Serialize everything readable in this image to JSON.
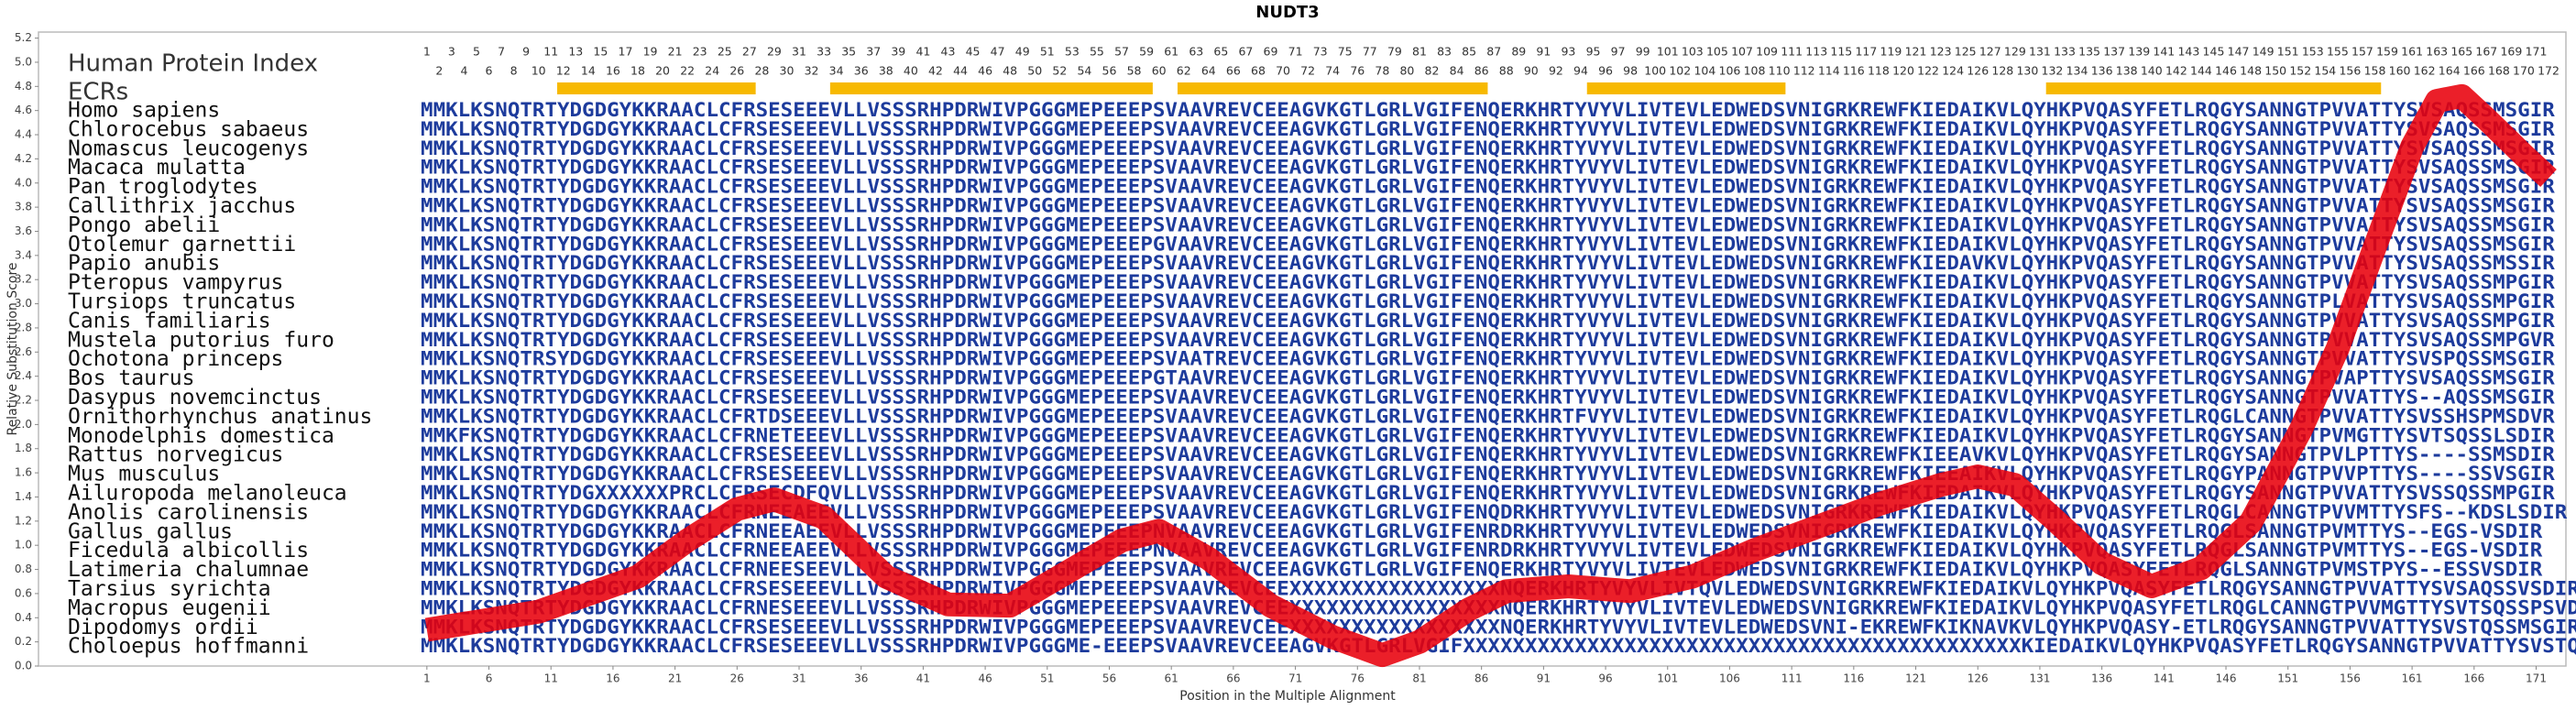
{
  "chart_data": {
    "type": "line",
    "title": "NUDT3",
    "y_label": "Relative Substitution Score",
    "x_label": "Position in the Multiple Alignment",
    "index_label": "Human Protein Index",
    "ecr_label": "ECRs",
    "color": "#e8000b",
    "ecr_color": "#f7b900",
    "xlim": [
      0.2,
      173.4
    ],
    "ylim": [
      0,
      5.25
    ],
    "xticks": [
      1,
      6,
      11,
      16,
      21,
      26,
      31,
      36,
      41,
      46,
      51,
      56,
      61,
      66,
      71,
      76,
      81,
      86,
      91,
      96,
      101,
      106,
      111,
      116,
      121,
      126,
      131,
      136,
      141,
      146,
      151,
      156,
      161,
      166,
      171
    ],
    "yticks": [
      {
        "value": 0,
        "label": "0.0"
      },
      {
        "value": 0.2,
        "label": "0.2"
      },
      {
        "value": 0.4,
        "label": "0.4"
      },
      {
        "value": 0.6,
        "label": "0.6"
      },
      {
        "value": 0.8,
        "label": "0.8"
      },
      {
        "value": 1,
        "label": "1.0"
      },
      {
        "value": 1.2,
        "label": "1.2"
      },
      {
        "value": 1.4,
        "label": "1.4"
      },
      {
        "value": 1.6,
        "label": "1.6"
      },
      {
        "value": 1.8,
        "label": "1.8"
      },
      {
        "value": 2,
        "label": "2.0"
      },
      {
        "value": 2.2,
        "label": "2.2"
      },
      {
        "value": 2.4,
        "label": "2.4"
      },
      {
        "value": 2.6,
        "label": "2.6"
      },
      {
        "value": 2.8,
        "label": "2.8"
      },
      {
        "value": 3,
        "label": "3.0"
      },
      {
        "value": 3.2,
        "label": "3.2"
      },
      {
        "value": 3.4,
        "label": "3.4"
      },
      {
        "value": 3.6,
        "label": "3.6"
      },
      {
        "value": 3.8,
        "label": "3.8"
      },
      {
        "value": 4,
        "label": "4.0"
      },
      {
        "value": 4.2,
        "label": "4.2"
      },
      {
        "value": 4.4,
        "label": "4.4"
      },
      {
        "value": 4.6,
        "label": "4.6"
      },
      {
        "value": 4.8,
        "label": "4.8"
      },
      {
        "value": 5,
        "label": "5.0"
      },
      {
        "value": 5.2,
        "label": "5.2"
      }
    ],
    "x": [
      1,
      10,
      18,
      22,
      26,
      29,
      33,
      38,
      43,
      48,
      53,
      57,
      60,
      64,
      69,
      74,
      78,
      81,
      85,
      88,
      93,
      98,
      103,
      108,
      113,
      118,
      123,
      126,
      129,
      132,
      136,
      140,
      144,
      148,
      152,
      155,
      158,
      161,
      163,
      165,
      167,
      170,
      172
    ],
    "values": [
      0.3,
      0.45,
      0.74,
      1.04,
      1.3,
      1.38,
      1.23,
      0.74,
      0.51,
      0.5,
      0.8,
      1.04,
      1.12,
      0.89,
      0.5,
      0.24,
      0.09,
      0.2,
      0.47,
      0.62,
      0.66,
      0.62,
      0.74,
      0.96,
      1.15,
      1.34,
      1.5,
      1.57,
      1.5,
      1.23,
      0.85,
      0.66,
      0.81,
      1.19,
      1.95,
      2.63,
      3.47,
      4.3,
      4.68,
      4.72,
      4.53,
      4.23,
      4.04
    ],
    "ecrs": [
      {
        "start": 12,
        "end": 27
      },
      {
        "start": 34,
        "end": 59
      },
      {
        "start": 62,
        "end": 86
      },
      {
        "start": 95,
        "end": 110
      },
      {
        "start": 132,
        "end": 158
      }
    ],
    "human_index": [
      1,
      2,
      3,
      4,
      5,
      6,
      7,
      8,
      9,
      10,
      11,
      12,
      13,
      14,
      15,
      16,
      17,
      18,
      19,
      20,
      21,
      22,
      23,
      24,
      25,
      26,
      27,
      28,
      29,
      30,
      31,
      32,
      33,
      34,
      35,
      36,
      37,
      38,
      39,
      40,
      41,
      42,
      43,
      44,
      45,
      46,
      47,
      48,
      49,
      50,
      51,
      52,
      53,
      54,
      55,
      56,
      57,
      58,
      59,
      60,
      61,
      62,
      63,
      64,
      65,
      66,
      67,
      68,
      69,
      70,
      71,
      72,
      73,
      74,
      75,
      76,
      77,
      78,
      79,
      80,
      81,
      82,
      83,
      84,
      85,
      86,
      87,
      88,
      89,
      90,
      91,
      92,
      93,
      94,
      95,
      96,
      97,
      98,
      99,
      100,
      101,
      102,
      103,
      104,
      105,
      106,
      107,
      108,
      109,
      110,
      111,
      112,
      113,
      114,
      115,
      116,
      117,
      118,
      119,
      120,
      121,
      122,
      123,
      124,
      125,
      126,
      127,
      128,
      129,
      130,
      131,
      132,
      133,
      134,
      135,
      136,
      137,
      138,
      139,
      140,
      141,
      142,
      143,
      144,
      145,
      146,
      147,
      148,
      149,
      150,
      151,
      152,
      153,
      154,
      155,
      156,
      157,
      158,
      159,
      160,
      161,
      162,
      163,
      164,
      165,
      166,
      167,
      168,
      169,
      170,
      171,
      172
    ],
    "species": [
      {
        "name": "Homo sapiens",
        "sequence": "MMKLKSNQTRTYDGDGYKKRAACLCFRSESEEEVLLVSSSRHPDRWIVPGGGMEPEEEPSVAAVREVCEEAGVKGTLGRLVGIFENQERKHRTYVYVLIVTEVLEDWEDSVNIGRKREWFKIEDAIKVLQYHKPVQASYFETLRQGYSANNGTPVVATTYSVSAQSSMSGIR"
      },
      {
        "name": "Chlorocebus sabaeus",
        "sequence": "MMKLKSNQTRTYDGDGYKKRAACLCFRSESEEEVLLVSSSRHPDRWIVPGGGMEPEEEPSVAAVREVCEEAGVKGTLGRLVGIFENQERKHRTYVYVLIVTEVLEDWEDSVNIGRKREWFKIEDAIKVLQYHKPVQASYFETLRQGYSANNGTPVVATTYSVSAQSSMSGIR"
      },
      {
        "name": "Nomascus leucogenys",
        "sequence": "MMKLKSNQTRTYDGDGYKKRAACLCFRSESEEEVLLVSSSRHPDRWIVPGGGMEPEEEPSVAAVREVCEEAGVKGTLGRLVGIFENQERKHRTYVYVLIVTEVLEDWEDSVNIGRKREWFKIEDAIKVLQYHKPVQASYFETLRQGYSANNGTPVVATTYSVSAQSSMSGIR"
      },
      {
        "name": "Macaca mulatta",
        "sequence": "MMKLKSNQTRTYDGDGYKKRAACLCFRSESEEEVLLVSSSRHPDRWIVPGGGMEPEEEPSVAAVREVCEEAGVKGTLGRLVGIFENQERKHRTYVYVLIVTEVLEDWEDSVNIGRKREWFKIEDAIKVLQYHKPVQASYFETLRQGYSANNGTPVVATTYSVSAQSSMSGIR"
      },
      {
        "name": "Pan troglodytes",
        "sequence": "MMKLKSNQTRTYDGDGYKKRAACLCFRSESEEEVLLVSSSRHPDRWIVPGGGMEPEEEPSVAAVREVCEEAGVKGTLGRLVGIFENQERKHRTYVYVLIVTEVLEDWEDSVNIGRKREWFKIEDAIKVLQYHKPVQASYFETLRQGYSANNGTPVVATTYSVSAQSSMSGIR"
      },
      {
        "name": "Callithrix jacchus",
        "sequence": "MMKLKSNQTRTYDGDGYKKRAACLCFRSESEEEVLLVSSSRHPDRWIVPGGGMEPEEEPSVAAVREVCEEAGVKGTLGRLVGIFENQERKHRTYVYVLIVTEVLEDWEDSVNIGRKREWFKIEDAIKVLQYHKPVQASYFETLRQGYSANNGTPVVATTYSVSAQSSMSGIR"
      },
      {
        "name": "Pongo abelii",
        "sequence": "MMKLKSNQTRTYDGDGYKKRAACLCFRSESEEEVLLVSSSRHPDRWIVPGGGMEPEEEPSVAAVREVCEEAGVKGTLGRLVGIFENQERKHRTYVYVLIVTEVLEDWEDSVNIGRKREWFKIEDAIKVLQYHKPVQASYFETLRQGYSANNGTPVVATTYSVSAQSSMSGIR"
      },
      {
        "name": "Otolemur garnettii",
        "sequence": "MMKLKSNQTRTYDGDGYKKRAACLCFRSESEEEVLLVSSSRHPDRWIVPGGGMEPEEEPGVAAVREVCEEAGVKGTLGRLVGIFENQERKHRTYVYVLIVTEVLEDWEDSVNIGRKREWFKIEDAIKVLQYHKPVQASYFETLRQGYSANNGTPVVATTYSVSAQSSMSGIR"
      },
      {
        "name": "Papio anubis",
        "sequence": "MMKLKSNQTRTYDGDGYKKRAACLCFRSESEEEVLLVSSSRHPDRWIVPGGGMEPEEEPSVAAVREVCEEAGVKGTLGRLVGIFENQERKHRTYVYVLIVTEVLEDWEDSVNIGRKREWFKIEDAVKVLQYHKPVQASYFETLRQGYSANNGTPVVATTYSVSAQSSMSSIR"
      },
      {
        "name": "Pteropus vampyrus",
        "sequence": "MMKLKSNQTRTYDGDGYKKRAACLCFRSESEEEVLLVSSSRHPDRWIVPGGGMEPEEEPSVAAVREVCEEAGVKGTLGRLVGIFENQERKHRTYVYVLIVTEVLEDWEDSVNIGRKREWFKIEDAIKVLQYHKPVQASYFETLRQGYSANNGTPVVATTYSVSAQSSMPGIR"
      },
      {
        "name": "Tursiops truncatus",
        "sequence": "MMKLKSNQTRTYDGDGYKKRAACLCFRSESEEEVLLVSSSRHPDRWIVPGGGMEPEEEPSVAAVREVCEEAGVKGTLGRLVGIFENQERKHRTYVYVLIVTEVLEDWEDSVNIGRKREWFKIEDAIKVLQYHKPVQASYFETLRQGYSANNGTPLVATTYSVSAQSSMPGIR"
      },
      {
        "name": "Canis familiaris",
        "sequence": "MMKLKSNQTRTYDGDGYKKRAACLCFRSESEEEVLLVSSSRHPDRWIVPGGGMEPEEEPSVAAVREVCEEAGVKGTLGRLVGIFENQERKHRTYVYVLIVTEVLEDWEDSVNIGRKREWFKIEDAIKVLQYHKPVQASYFETLRQGYSANNGTPVVATTYSVSAQSSMPGIR"
      },
      {
        "name": "Mustela putorius furo",
        "sequence": "MMKLKSNQTRTYDGDGYKKRAACLCFRSESEEEVLLVSSSRHPDRWIVPGGGMEPEEEPSVAAVREVCEEAGVKGTLGRLVGIFENQERKHRTYVYVLIVTEVLEDWEDSVNIGRKREWFKIEDAIKVLQYHKPVQASYFETLRQGYSANNGTPVVATTYSVSAQSSMPGVR"
      },
      {
        "name": "Ochotona princeps",
        "sequence": "MMKLKSNQTRSYDGDGYKKRAACLCFRSESEEEVLLVSSSRHPDRWIVPGGGMEPEEEPSVAATREVCEEAGVKGTLGRLVGIFENQERKHRTYVYVLIVTEVLEDWEDSVNIGRKREWFKIEDAIKVLQYHKPVQASYFETLRQGYSANNGTPVVATTYSVSPQSSMSGIR"
      },
      {
        "name": "Bos taurus",
        "sequence": "MMKLKSNQTRTYDGDGYKKRAACLCFRSESEEEVLLVSSSRHPDRWIVPGGGMEPEEEPGTAAVREVCEEAGVKGTLGRLVGIFENQERKHRTYVYVLIVTEVLEDWEDSVNIGRKREWFKIEDAIKVLQYHKPVQASYFETLRQGYSANNGTPVAPTTYSVSAQSSMSGIR"
      },
      {
        "name": "Dasypus novemcinctus",
        "sequence": "MMKLKSNQTRTYDGDGYKKRAACLCFRSESEEEVLLVSSSRHPDRWIVPGGGMEPEEEPSVAAVREVCEEAGVKGTLGRLVGIFENQERKHRTYVYVLIVTEVLEDWEDSVNIGRKREWFKIEDAIKVLQYHKPVQASYFETLRQGYSANNGTPVVATTYS--AQSSMSGIR"
      },
      {
        "name": "Ornithorhynchus anatinus",
        "sequence": "MMKLKSNQTRTYDGDGYKKRAACLCFRTDSEEEVLLVSSSRHPDRWIVPGGGMEPEEEPSVAAVREVCEEAGVKGTLGRLVGIFENQERKHRTFVYVLIVTEVLEDWEDSVNIGRKREWFKIEDAIKVLQYHKPVQASYFETLRQGLCANNGTPVVATTYSVSSHSPMSDVR"
      },
      {
        "name": "Monodelphis domestica",
        "sequence": "MMKFKSNQTRTYDGDGYKKRAACLCFRNETEEEVLLVSSSRHPDRWIVPGGGMEPEEEPSVAAVREVCEEAGVKGTLGRLVGIFENQERKHRTYVYVLIVTEVLEDWEDSVNIGRKREWFKIEDAIKVLQYHKPVQASYFETLRQGYSANNGTPVMGTTYSVTSQSSLSDIR"
      },
      {
        "name": "Rattus norvegicus",
        "sequence": "MMKLKSNQTRTYDGDGYKKRAACLCFRSESEEEVLLVSSSRHPDRWIVPGGGMEPEEEPSVAAVREVCEEAGVKGTLGRLVGIFENQERKHRTYVYVLIVTEVLEDWEDSVNIGRKREWFKIEEAVKVLQYHKPVQASYFETLRQGYSANNGTPVLPTTYS----SSMSDIR"
      },
      {
        "name": "Mus musculus",
        "sequence": "MMKLKSNQTRTYDGDGYKKRAACLCFRSESEEEVLLVSSSRHPDRWIVPGGGMEPEEEPSVAAVREVCEEAGVKGTLGRLVGIFENQERKHRTYVYVLIVTEVLEDWEDSVNIGRKREWFKIEEAIKVLQYHKPVQASYFETLRQGYPANNGTPVVPTTYS----SSVSGIR"
      },
      {
        "name": "Ailuropoda melanoleuca",
        "sequence": "MMKLKSNQTRTYDGXXXXXXPRCLCFRSECDFQVLLVSSSRHPDRWIVPGGGMEPEEEPSVAAVREVCEEAGVKGTLGRLVGIFENQERKHRTYVYVLIVTEVLEDWEDSVNIGRKREWFKIEDAIKVLQYHKPVQASYFETLRQGYSANNGTPVVATTYSVSSQSSMPGIR"
      },
      {
        "name": "Anolis carolinensis",
        "sequence": "MMKLKSNQTRTYDGDGYKKRAACLCFRNEEAEEVLLVSSSRHPDRWIVPGGGMEPEEEPSVAAVREVCEEAGVKGTLGRLVGIFENQDRKHRTYVYVLIVTEVLEDWEDSVNIGRKREWFKIEDAIKVLQYHKPVQASYFETLRQGLCANNGTPVVMTTYSFS--KDSLSDIR"
      },
      {
        "name": "Gallus gallus",
        "sequence": "MMKLKSNQTRTYDGDGYKKRAACLCFRNEEAEEVLLVSSSRHPDRWIVPGGGMEPEEEPNVAAVREVCEEAGVKGTLGRLVGIFENRDRKHRTYVYVLIVTEVLEDWEDSVNIGRKREWFKIEDAIKVLQYHKPVQASYFETLRQGLSANNGTPVMTTYS--EGS-VSDIR"
      },
      {
        "name": "Ficedula albicollis",
        "sequence": "MMKLKSNQTRTYDGDGYKKRAACLCFRNEEAEEVLLVSSSRHPDRWIVPGGGMEPEEEPNVAAVREVCEEAGVKGTLGRLVGIFENRDRKHRTYVYVLIVTEVLEDWEDSVNIGRKREWFKIEDAIKVLQYHKPVQASYFETLRQGLSANNGTPVMTTYS--EGS-VSDIR"
      },
      {
        "name": "Latimeria chalumnae",
        "sequence": "MMKLKSNQTRTYDGDGYKKRAACLCFRNEESEEVLLVSSSRHPDRWIVPGGGMEPEEEPSVAAVREVCEEAGVKGTLGRLVGIFENQERKHRTYVYVLIVTEVLEDWEDSVNIGRKREWFKIEDAIKVLQYHKPVQASYFETLRQGLSANNGTPVMSTPYS--ESSVSDIR"
      },
      {
        "name": "Tarsius syrichta",
        "sequence": "MMKLKSNQTRTYDGDGYKKRAACLCFRSESEEEVLLVSSSRHPDRWIVPGGGMEPEEEPSVAAVREVCEEXXXXXXXXXXXXXXXXXNQERKHRTYVYVLIVTQVLEDWEDSVNIGRKREWFKIEDAIKVLQYHKPVQASYFETLRQGYSANNGTPVVATTYSVSAQSSVSDIR"
      },
      {
        "name": "Macropus eugenii",
        "sequence": "MMKLKSNQTRTYDGDGYKKRAACLCFRNESEEEVLLVSSSRHPDRWIVPGGGMEPEEEPSVAAVREVCEEXXXXXXXXXXXXXXXXXNQERKHRTYVYVLIVTEVLEDWEDSVNIGRKREWFKIEDAIKVLQYHKPVQASYFETLRQGLCANNGTPVVMGTTYSVTSQSSPSVDIR"
      },
      {
        "name": "Dipodomys ordii",
        "sequence": "MMKLKSNQTRTYDGDGYKKRAACLCFRSESEEEVLLVSSSRHPDRWIVPGGGMEPEEEPSVAAVREVCEEXXXXXXXXXXXXXXXXXNQERKHRTYVYVLIVTEVLEDWEDSVNI-EKREWFKIKNAVKVLQYHKPVQASY-ETLRQGYSANNGTPVVATTYSVSTQSSMSGIR"
      },
      {
        "name": "Choloepus hoffmanni",
        "sequence": "MMKLKSNQTRTYDGDGYKKRAACLCFRSESEEEVLLVSSSRHPDRWIVPGGGME-EEEPSVAAVREVCEEAGVKGTLGRLVGIFXXXXXXXXXXXXXXXXXXXXXXXXXXXXXXXXXXXXXXXXXXXXXKIEDAIKVLQYHKPVQASYFETLRQGYSANNGTPVVATTYSVSTQSSMSGIR"
      }
    ]
  }
}
